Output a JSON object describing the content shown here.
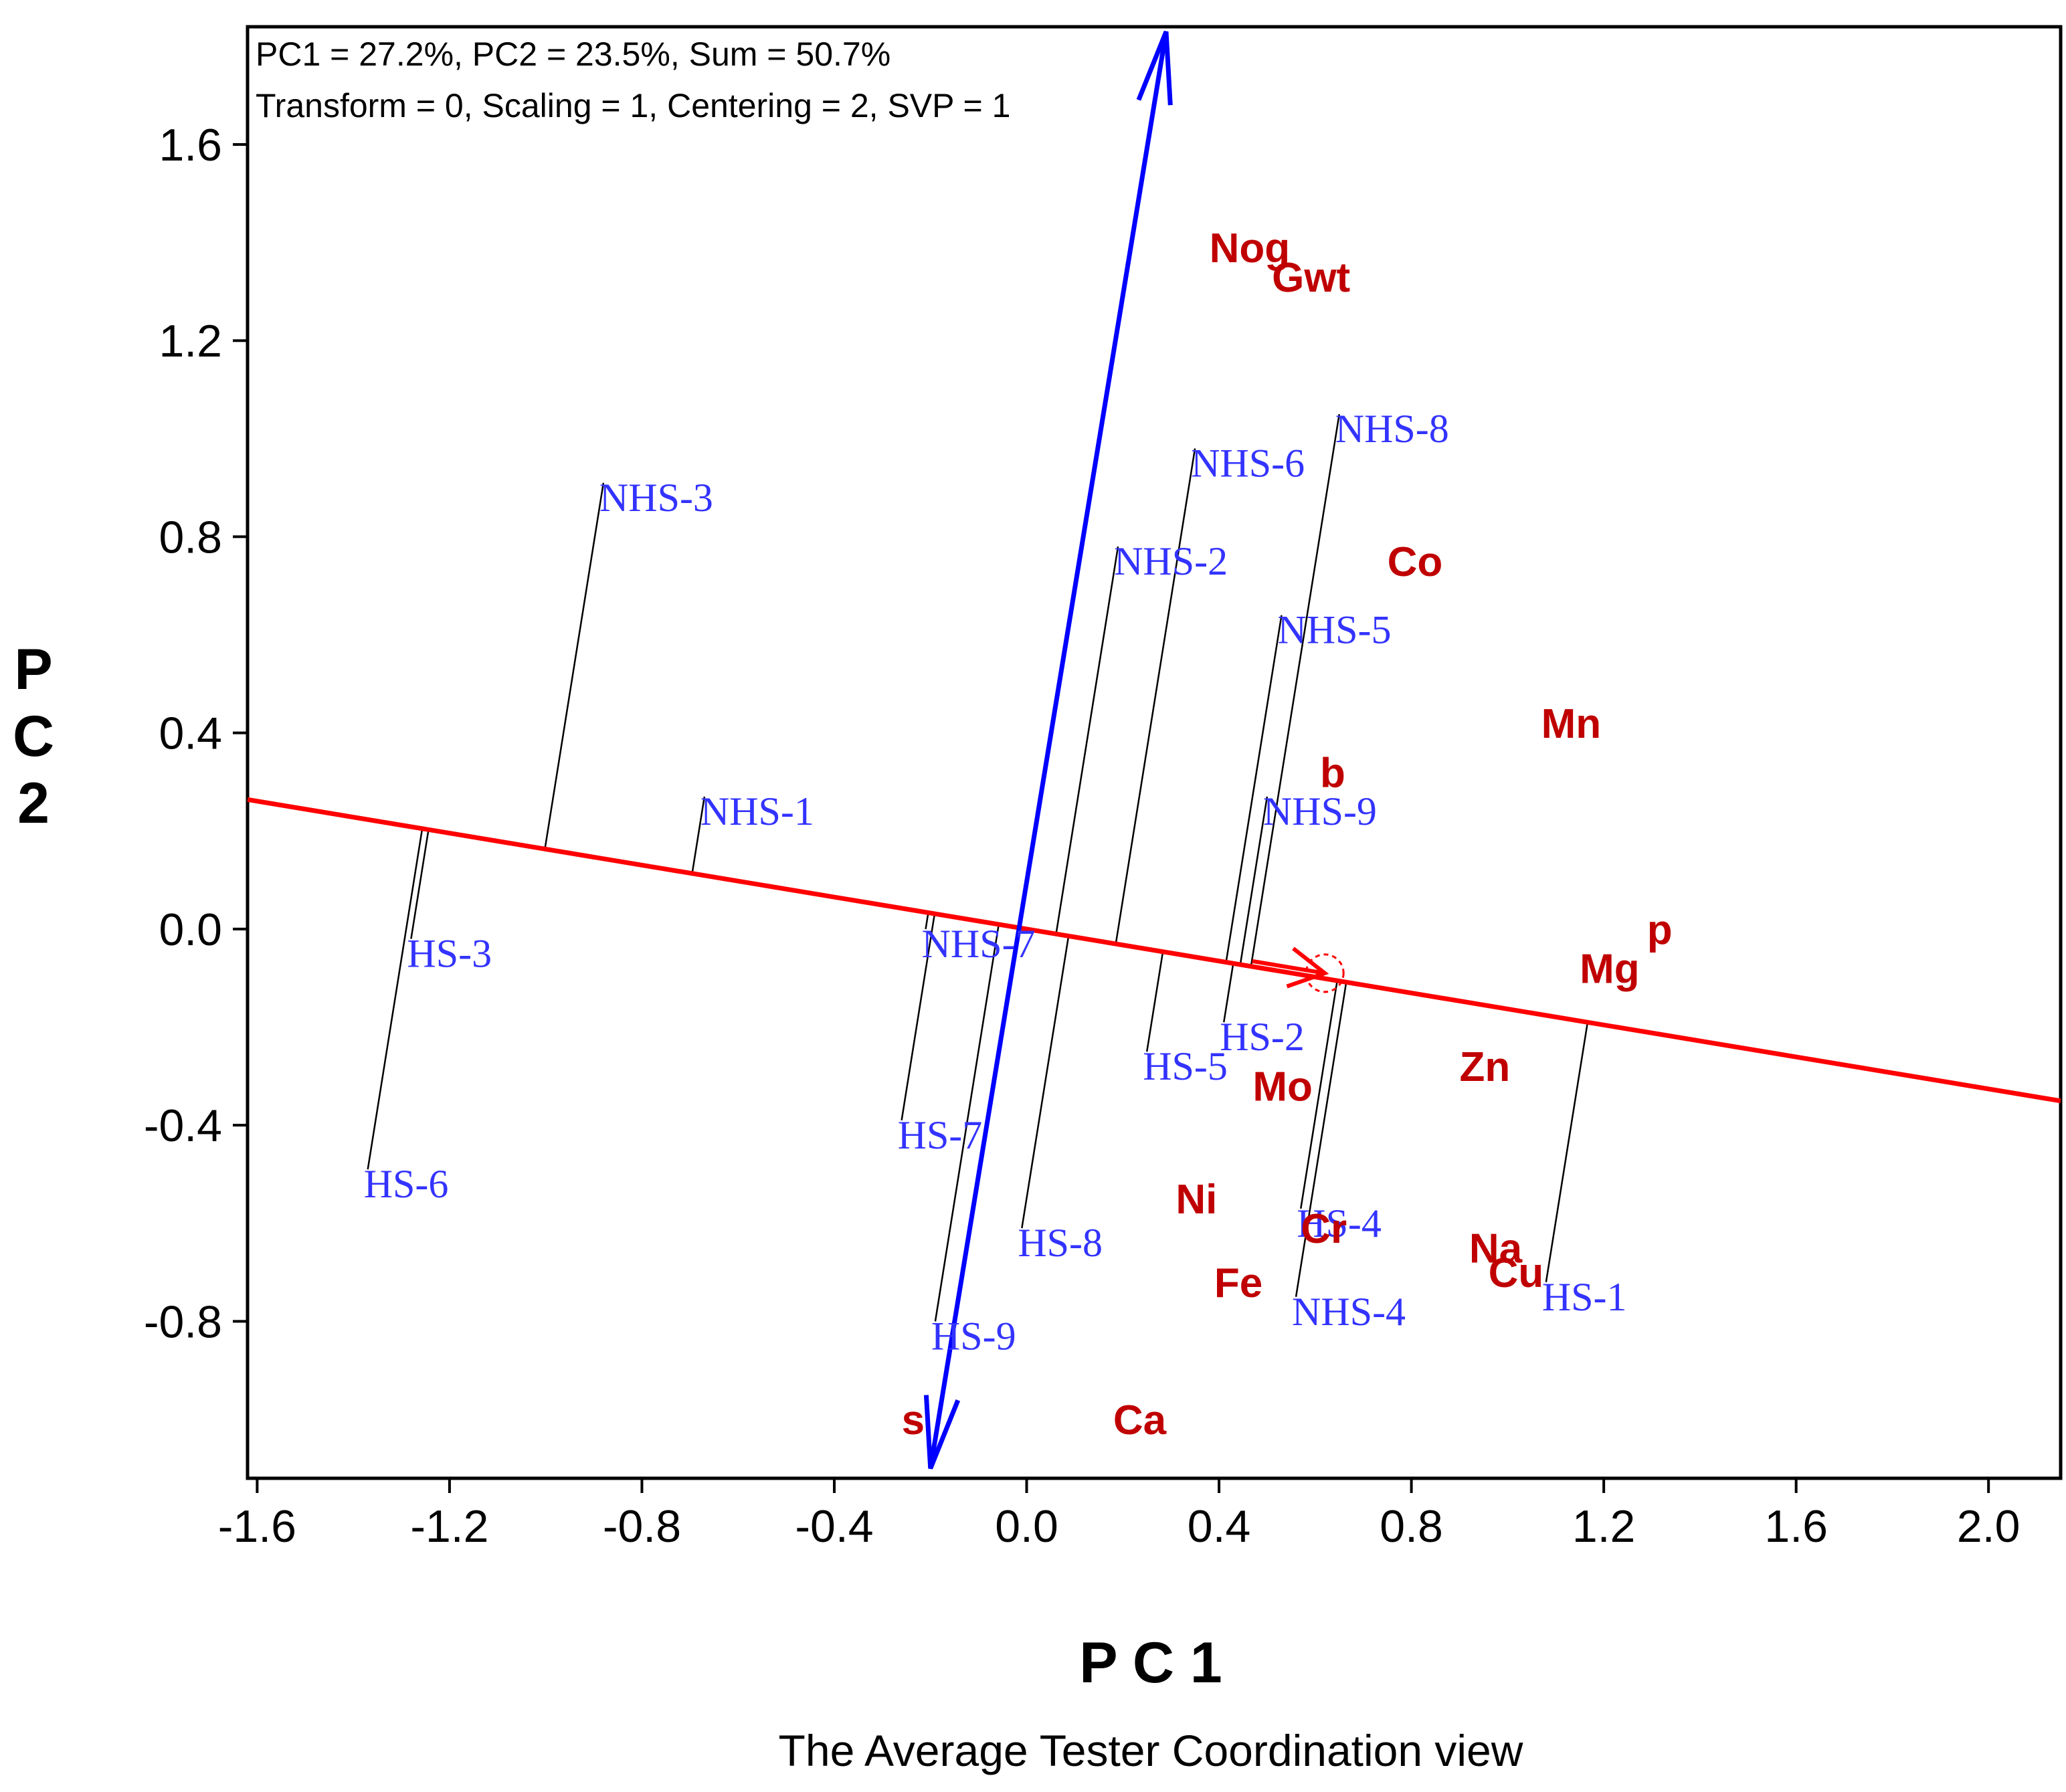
{
  "colors": {
    "genotype": "#3333ff",
    "trait": "#c00000",
    "ata_line": "#ff0000",
    "ordinate_line": "#0000ff",
    "projection": "#000000",
    "frame": "#000000"
  },
  "chart_data": {
    "type": "scatter",
    "title": "The Average Tester Coordination view",
    "xlabel": "P C 1",
    "ylabel_letters": [
      "P",
      "C",
      "2"
    ],
    "info_lines": [
      "PC1 = 27.2%, PC2 = 23.5%, Sum = 50.7%",
      "Transform = 0, Scaling = 1, Centering = 2, SVP = 1"
    ],
    "xlim": [
      -1.62,
      2.15
    ],
    "ylim": [
      -1.12,
      1.84
    ],
    "xticks": [
      {
        "value": -1.6,
        "label": "-1.6"
      },
      {
        "value": -1.2,
        "label": "-1.2"
      },
      {
        "value": -0.8,
        "label": "-0.8"
      },
      {
        "value": -0.4,
        "label": "-0.4"
      },
      {
        "value": 0.0,
        "label": "0.0"
      },
      {
        "value": 0.4,
        "label": "0.4"
      },
      {
        "value": 0.8,
        "label": "0.8"
      },
      {
        "value": 1.2,
        "label": "1.2"
      },
      {
        "value": 1.6,
        "label": "1.6"
      },
      {
        "value": 2.0,
        "label": "2.0"
      }
    ],
    "yticks": [
      {
        "value": 1.6,
        "label": "1.6"
      },
      {
        "value": 1.2,
        "label": "1.2"
      },
      {
        "value": 0.8,
        "label": "0.8"
      },
      {
        "value": 0.4,
        "label": "0.4"
      },
      {
        "value": 0.0,
        "label": "0.0"
      },
      {
        "value": -0.4,
        "label": "-0.4"
      },
      {
        "value": -0.8,
        "label": "-0.8"
      }
    ],
    "ata_slope": -0.163,
    "average_environment": {
      "x": 0.62,
      "y": -0.09
    },
    "ordinate_axis": {
      "top": {
        "x": 0.29,
        "y": 1.83
      },
      "bottom": {
        "x": -0.2,
        "y": -1.1
      }
    },
    "genotypes": [
      {
        "name": "NHS-3",
        "x": -0.88,
        "y": 0.91
      },
      {
        "name": "NHS-1",
        "x": -0.67,
        "y": 0.27
      },
      {
        "name": "NHS-7",
        "x": -0.21,
        "y": 0.0
      },
      {
        "name": "NHS-2",
        "x": 0.19,
        "y": 0.78
      },
      {
        "name": "NHS-6",
        "x": 0.35,
        "y": 0.98
      },
      {
        "name": "NHS-5",
        "x": 0.53,
        "y": 0.64
      },
      {
        "name": "NHS-8",
        "x": 0.65,
        "y": 1.05
      },
      {
        "name": "NHS-9",
        "x": 0.5,
        "y": 0.27
      },
      {
        "name": "NHS-4",
        "x": 0.56,
        "y": -0.75
      },
      {
        "name": "HS-3",
        "x": -1.28,
        "y": -0.02
      },
      {
        "name": "HS-6",
        "x": -1.37,
        "y": -0.49
      },
      {
        "name": "HS-7",
        "x": -0.26,
        "y": -0.39
      },
      {
        "name": "HS-9",
        "x": -0.19,
        "y": -0.8
      },
      {
        "name": "HS-8",
        "x": -0.01,
        "y": -0.61
      },
      {
        "name": "HS-5",
        "x": 0.25,
        "y": -0.25
      },
      {
        "name": "HS-2",
        "x": 0.41,
        "y": -0.19
      },
      {
        "name": "HS-4",
        "x": 0.57,
        "y": -0.57
      },
      {
        "name": "HS-1",
        "x": 1.08,
        "y": -0.72
      }
    ],
    "traits": [
      {
        "name": "Nog",
        "x": 0.38,
        "y": 1.39
      },
      {
        "name": "Gwt",
        "x": 0.51,
        "y": 1.33
      },
      {
        "name": "Co",
        "x": 0.75,
        "y": 0.75
      },
      {
        "name": "Mn",
        "x": 1.07,
        "y": 0.42
      },
      {
        "name": "b",
        "x": 0.61,
        "y": 0.32
      },
      {
        "name": "p",
        "x": 1.29,
        "y": 0.0
      },
      {
        "name": "Mg",
        "x": 1.15,
        "y": -0.08
      },
      {
        "name": "Zn",
        "x": 0.9,
        "y": -0.28
      },
      {
        "name": "Mo",
        "x": 0.47,
        "y": -0.32
      },
      {
        "name": "Ni",
        "x": 0.31,
        "y": -0.55
      },
      {
        "name": "Cr",
        "x": 0.57,
        "y": -0.61
      },
      {
        "name": "Na",
        "x": 0.92,
        "y": -0.65
      },
      {
        "name": "Cu",
        "x": 0.96,
        "y": -0.7
      },
      {
        "name": "Fe",
        "x": 0.39,
        "y": -0.72
      },
      {
        "name": "s",
        "x": -0.26,
        "y": -1.0
      },
      {
        "name": "Ca",
        "x": 0.18,
        "y": -1.0
      }
    ]
  }
}
